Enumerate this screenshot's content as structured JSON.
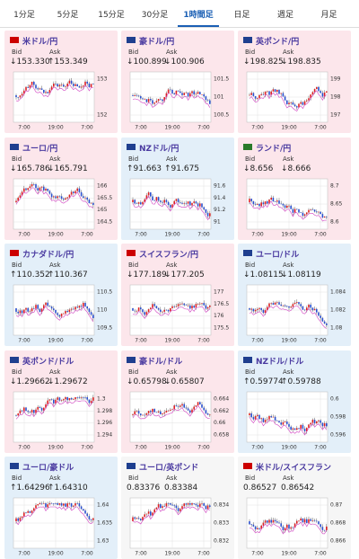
{
  "tabs": [
    "1分足",
    "5分足",
    "15分足",
    "30分足",
    "1時間足",
    "日足",
    "週足",
    "月足"
  ],
  "active_tab": 4,
  "bid_label": "Bid",
  "ask_label": "Ask",
  "x_ticks": [
    "7:00",
    "19:00",
    "7:00"
  ],
  "cards": [
    {
      "name": "米ドル/円",
      "bid": "↓153.330",
      "ask": "↑153.349",
      "yticks": [
        153,
        152
      ],
      "tone": "down"
    },
    {
      "name": "豪ドル/円",
      "bid": "↓100.899",
      "ask": "↓100.906",
      "yticks": [
        101.5,
        101,
        100.5
      ],
      "tone": "down"
    },
    {
      "name": "英ポンド/円",
      "bid": "↓198.825",
      "ask": "↓198.835",
      "yticks": [
        199,
        198,
        197
      ],
      "tone": "down"
    },
    {
      "name": "ユーロ/円",
      "bid": "↓165.786",
      "ask": "↓165.791",
      "yticks": [
        166,
        165.5,
        165,
        164.5
      ],
      "tone": "down"
    },
    {
      "name": "NZドル/円",
      "bid": "↑91.663",
      "ask": "↑91.675",
      "yticks": [
        91.6,
        91.4,
        91.2,
        91
      ],
      "tone": "up"
    },
    {
      "name": "ランド/円",
      "bid": "↓8.656",
      "ask": "↓8.666",
      "yticks": [
        8.7,
        8.65,
        8.6
      ],
      "tone": "down"
    },
    {
      "name": "カナダドル/円",
      "bid": "↑110.352",
      "ask": "↑110.367",
      "yticks": [
        110.5,
        110,
        109.5
      ],
      "tone": "up"
    },
    {
      "name": "スイスフラン/円",
      "bid": "↓177.189",
      "ask": "↓177.205",
      "yticks": [
        177,
        176.5,
        176,
        175.5
      ],
      "tone": "down"
    },
    {
      "name": "ユーロ/ドル",
      "bid": "↓1.08115",
      "ask": "↓1.08119",
      "yticks": [
        1.084,
        1.082,
        1.08
      ],
      "tone": "up"
    },
    {
      "name": "英ポンド/ドル",
      "bid": "↓1.29662",
      "ask": "↓1.29672",
      "yticks": [
        1.3,
        1.298,
        1.296,
        1.294
      ],
      "tone": "down"
    },
    {
      "name": "豪ドル/ドル",
      "bid": "↓0.65798",
      "ask": "↓0.65807",
      "yticks": [
        0.664,
        0.662,
        0.66,
        0.658
      ],
      "tone": "down"
    },
    {
      "name": "NZドル/ドル",
      "bid": "↑0.59774",
      "ask": "↑0.59788",
      "yticks": [
        0.6,
        0.598,
        0.596
      ],
      "tone": "up"
    },
    {
      "name": "ユーロ/豪ドル",
      "bid": "↑1.64296",
      "ask": "↑1.64310",
      "yticks": [
        1.64,
        1.635,
        1.63
      ],
      "tone": "up"
    },
    {
      "name": "ユーロ/英ポンド",
      "bid": "0.83376",
      "ask": "0.83384",
      "yticks": [
        0.834,
        0.833,
        0.832
      ],
      "tone": "flat"
    },
    {
      "name": "米ドル/スイスフラン",
      "bid": "0.86527",
      "ask": "0.86542",
      "yticks": [
        0.87,
        0.868,
        0.866
      ],
      "tone": "flat"
    }
  ]
}
